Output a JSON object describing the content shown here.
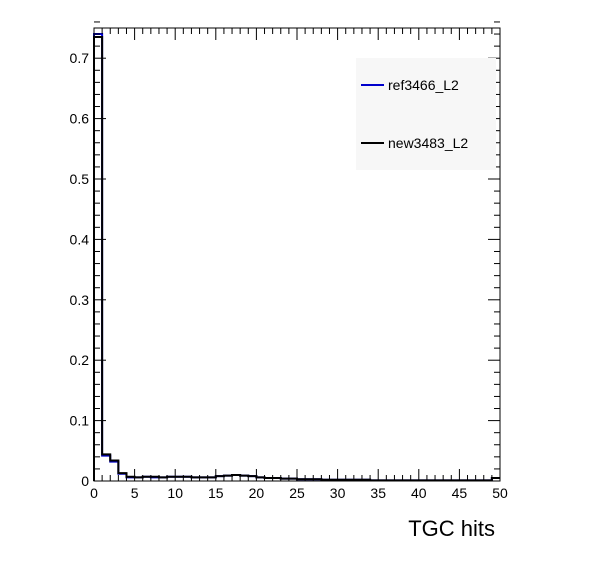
{
  "chart_data": {
    "type": "histogram",
    "xlabel": "TGC hits",
    "ylabel": "",
    "xlim": [
      0,
      50
    ],
    "ylim": [
      0,
      0.75
    ],
    "bin_width": 1,
    "x_ticks": [
      "0",
      "5",
      "10",
      "15",
      "20",
      "25",
      "30",
      "35",
      "40",
      "45",
      "50"
    ],
    "y_ticks": [
      "0",
      "0.1",
      "0.2",
      "0.3",
      "0.4",
      "0.5",
      "0.6",
      "0.7"
    ],
    "legend_placement": "top-right",
    "series": [
      {
        "name": "ref3466_L2",
        "color": "#0000cc",
        "values": [
          0.74,
          0.042,
          0.032,
          0.012,
          0.006,
          0.006,
          0.007,
          0.006,
          0.006,
          0.007,
          0.007,
          0.007,
          0.006,
          0.006,
          0.006,
          0.008,
          0.009,
          0.01,
          0.009,
          0.008,
          0.006,
          0.005,
          0.005,
          0.004,
          0.004,
          0.003,
          0.003,
          0.003,
          0.002,
          0.002,
          0.002,
          0.002,
          0.002,
          0.002,
          0.001,
          0.001,
          0.001,
          0.001,
          0.001,
          0.001,
          0.001,
          0.001,
          0.001,
          0.001,
          0.001,
          0.001,
          0.001,
          0.001,
          0.001,
          0.005
        ]
      },
      {
        "name": "new3483_L2",
        "color": "#000000",
        "values": [
          0.735,
          0.044,
          0.034,
          0.013,
          0.007,
          0.006,
          0.007,
          0.007,
          0.006,
          0.007,
          0.007,
          0.007,
          0.006,
          0.006,
          0.006,
          0.008,
          0.009,
          0.01,
          0.009,
          0.008,
          0.006,
          0.005,
          0.005,
          0.004,
          0.004,
          0.003,
          0.003,
          0.003,
          0.002,
          0.002,
          0.002,
          0.002,
          0.002,
          0.002,
          0.001,
          0.001,
          0.001,
          0.001,
          0.001,
          0.001,
          0.001,
          0.001,
          0.001,
          0.001,
          0.001,
          0.001,
          0.001,
          0.001,
          0.001,
          0.005
        ]
      }
    ]
  }
}
